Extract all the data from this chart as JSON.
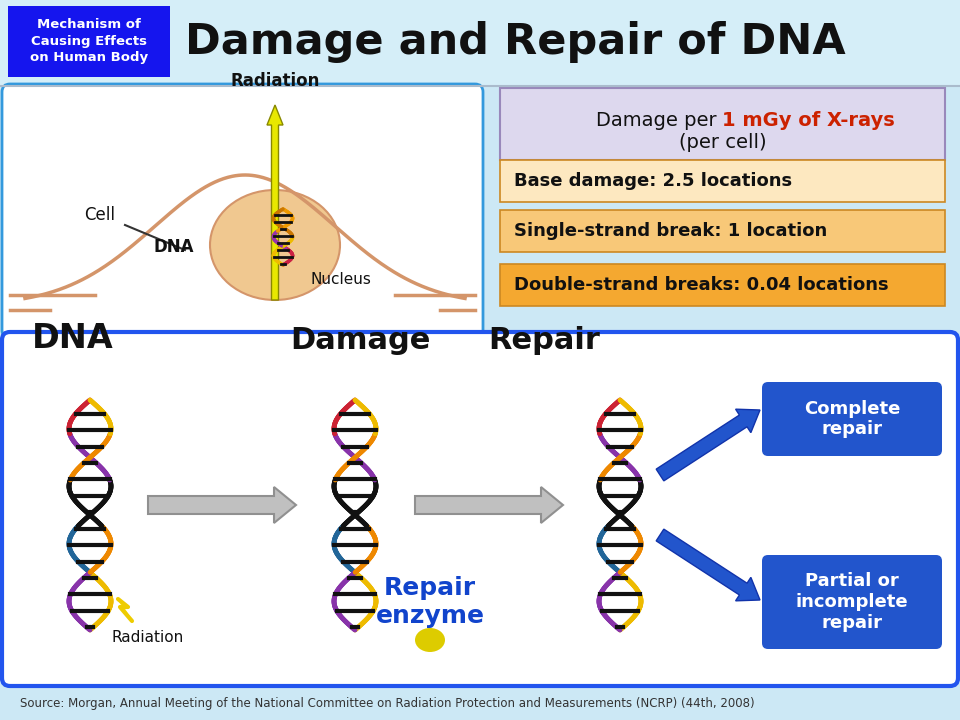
{
  "title": "Damage and Repair of DNA",
  "subtitle_box": "Mechanism of\nCausing Effects\non Human Body",
  "subtitle_box_color": "#1515ee",
  "subtitle_text_color": "#ffffff",
  "bg_color": "#cce8f5",
  "header_bg": "#d5eef8",
  "damage_header_text1": "Damage per ",
  "damage_header_text2": "1 mGy of X-rays",
  "damage_header_text3": "(per cell)",
  "damage_header_bg": "#ddd8ee",
  "damage_items": [
    {
      "text": "Base damage: 2.5 locations",
      "bg": "#fde8c0"
    },
    {
      "text": "Single-strand break: 1 location",
      "bg": "#f8c878"
    },
    {
      "text": "Double-strand breaks: 0.04 locations",
      "bg": "#f4a830"
    }
  ],
  "dna_label": "DNA",
  "damage_label": "Damage",
  "repair_label": "Repair",
  "radiation_label": "Radiation",
  "repair_enzyme_label": "Repair\nenzyme",
  "complete_repair_label": "Complete\nrepair",
  "partial_repair_label": "Partial or\nincomplete\nrepair",
  "source_text": "Source: Morgan, Annual Meeting of the National Committee on Radiation Protection and Measurements (NCRP) (44th, 2008)",
  "blue_box_color": "#2255cc",
  "bottom_panel_border": "#2255ee",
  "arrow_gray": "#b0b0b0",
  "arrow_blue": "#2255cc",
  "red_highlight": "#cc2200",
  "repair_enzyme_color": "#1144cc",
  "cell_line_color": "#d4956a",
  "nucleus_color": "#f0c890",
  "nucleus_edge": "#d4956a",
  "radiation_arrow_color": "#e8e800",
  "radiation_arrow_edge": "#888800",
  "left_panel_bg": "#ffffff",
  "left_panel_edge": "#3399dd",
  "bottom_panel_bg": "#ffffff"
}
